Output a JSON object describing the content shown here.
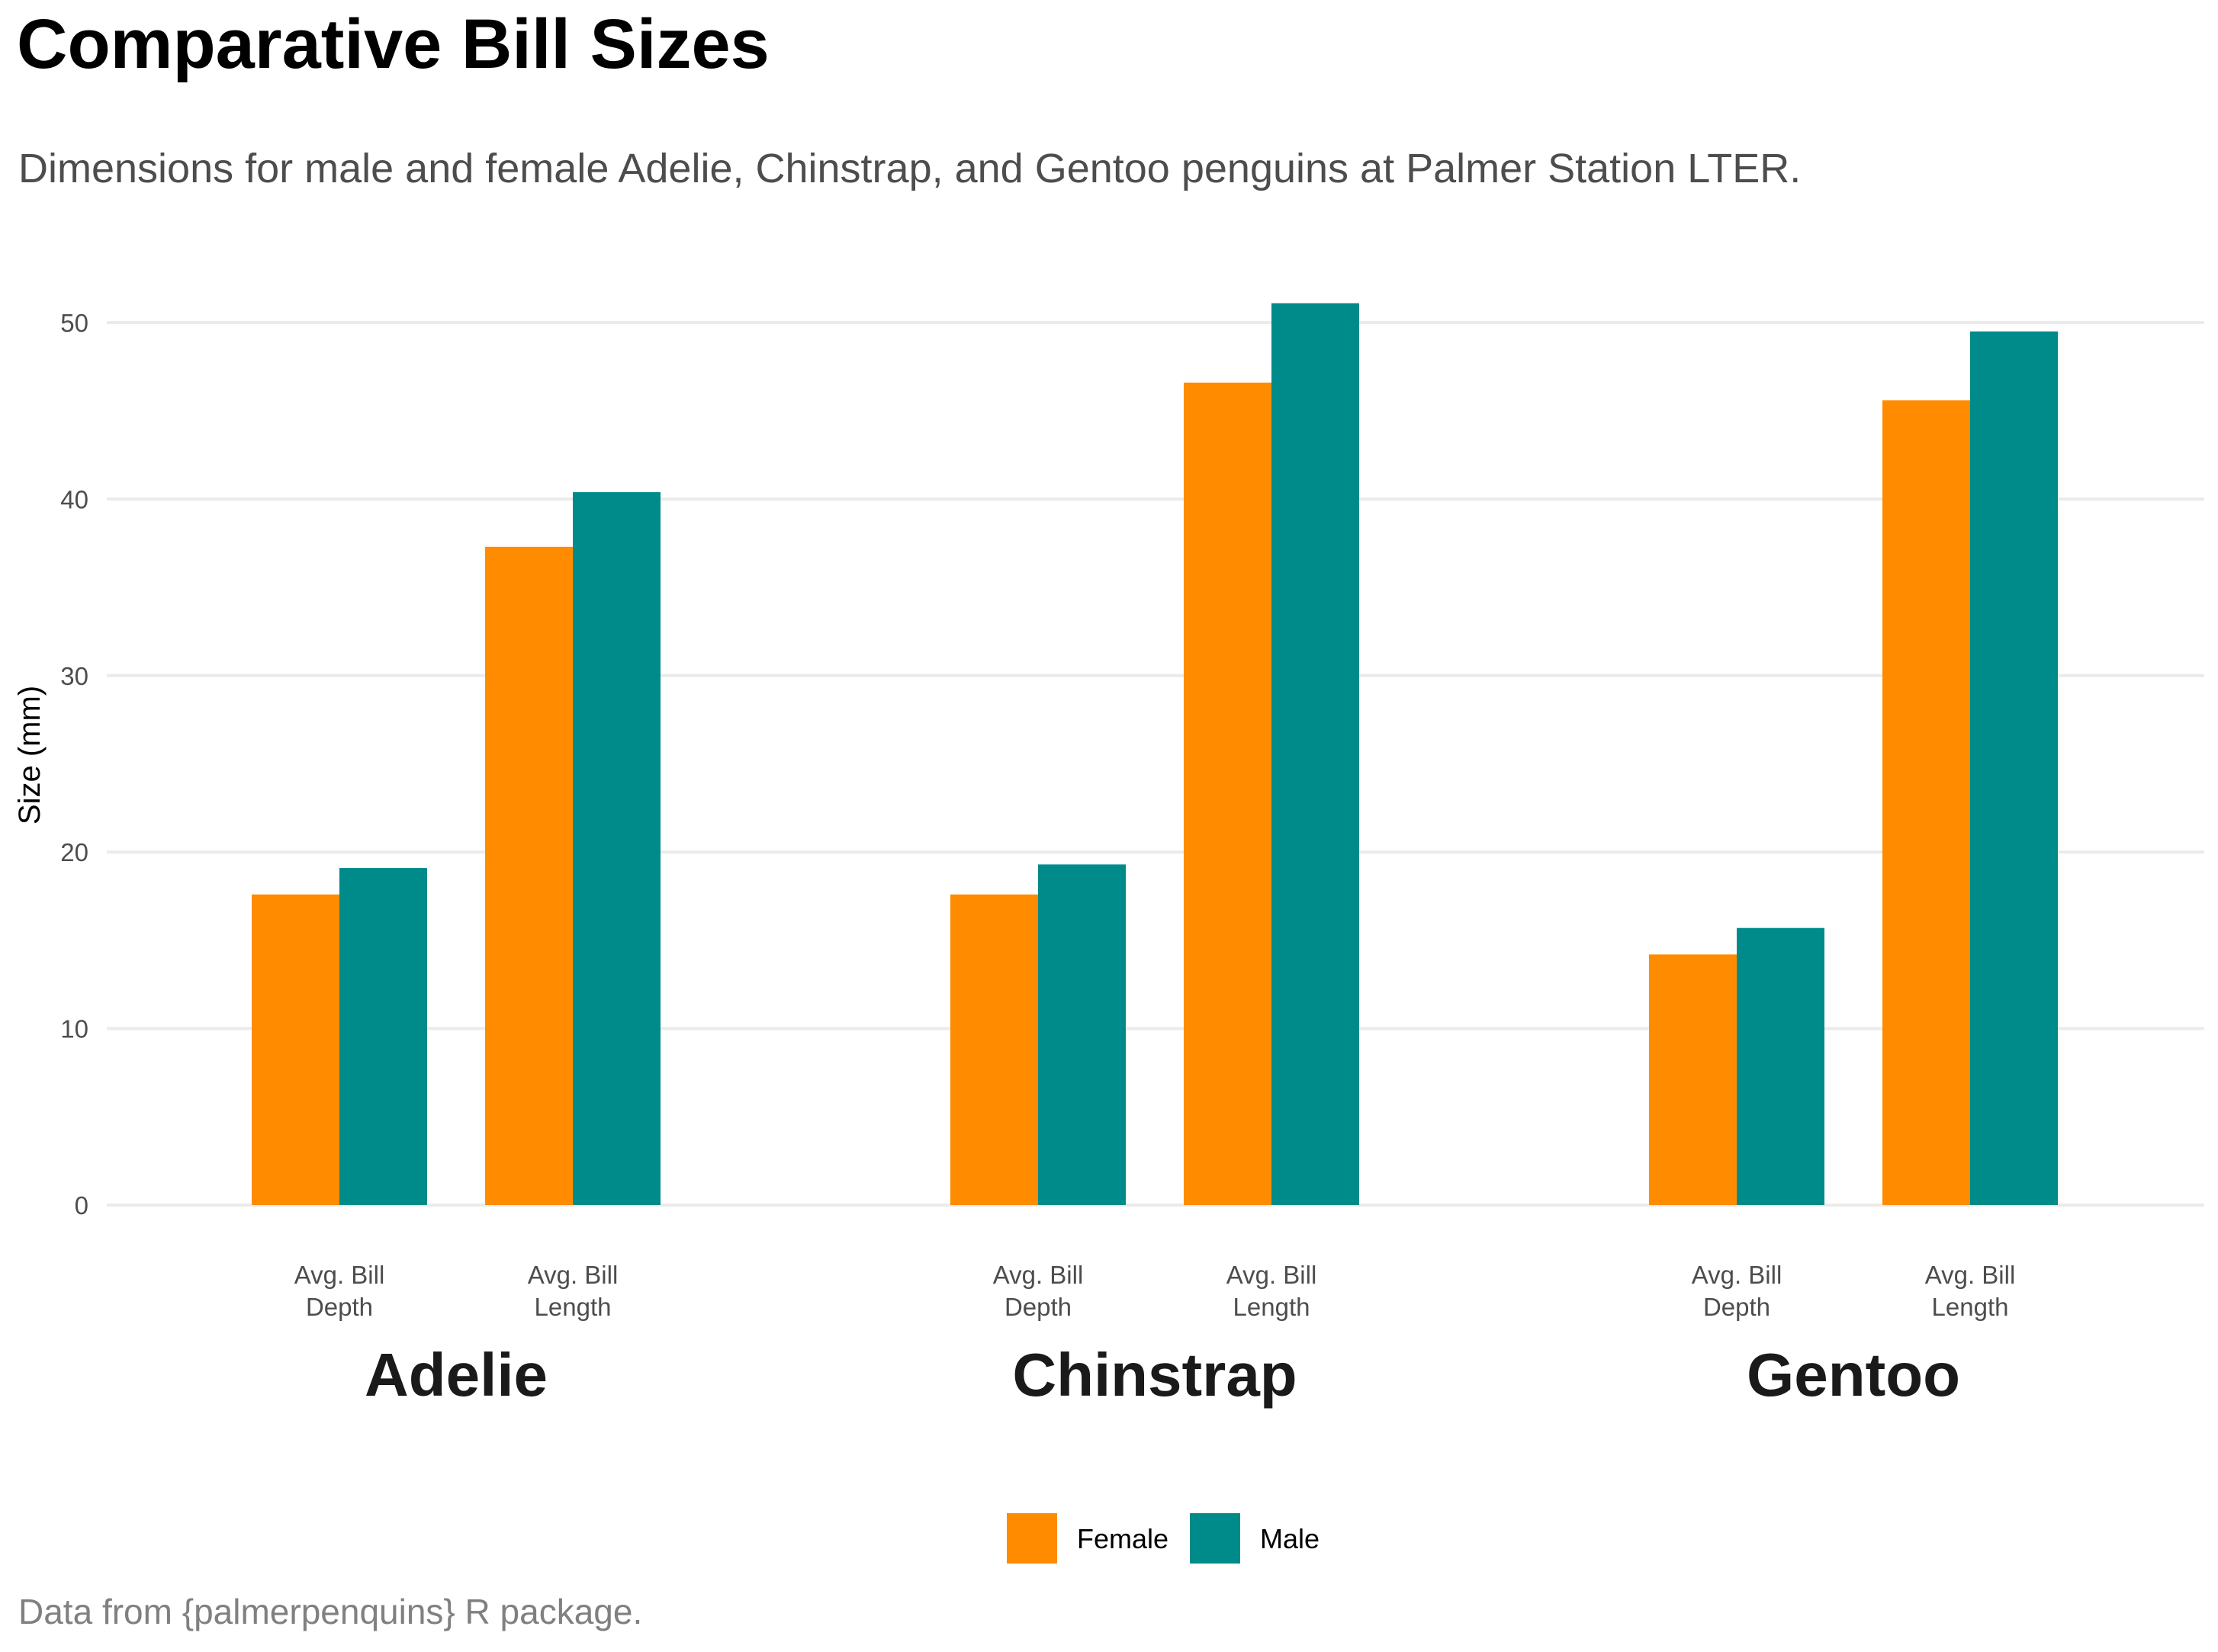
{
  "title": "Comparative Bill Sizes",
  "subtitle": "Dimensions for male and female Adelie, Chinstrap, and Gentoo penguins at Palmer Station LTER.",
  "caption": "Data from {palmerpenquins} R package.",
  "chart_data": {
    "type": "bar",
    "title": "Comparative Bill Sizes",
    "subtitle": "Dimensions for male and female Adelie, Chinstrap, and Gentoo penguins at Palmer Station LTER.",
    "ylabel": "Size (mm)",
    "ylim": [
      0,
      52
    ],
    "yticks": [
      0,
      10,
      20,
      30,
      40,
      50
    ],
    "grid": true,
    "legend_position": "bottom",
    "categories": [
      "Avg. Bill\nDepth",
      "Avg. Bill\nLength"
    ],
    "series": [
      {
        "name": "Female",
        "color": "#ff8c00"
      },
      {
        "name": "Male",
        "color": "#008b8b"
      }
    ],
    "facets": [
      {
        "name": "Adelie",
        "values": {
          "Female": [
            17.6,
            37.3
          ],
          "Male": [
            19.1,
            40.4
          ]
        }
      },
      {
        "name": "Chinstrap",
        "values": {
          "Female": [
            17.6,
            46.6
          ],
          "Male": [
            19.3,
            51.1
          ]
        }
      },
      {
        "name": "Gentoo",
        "values": {
          "Female": [
            14.2,
            45.6
          ],
          "Male": [
            15.7,
            49.5
          ]
        }
      }
    ]
  }
}
